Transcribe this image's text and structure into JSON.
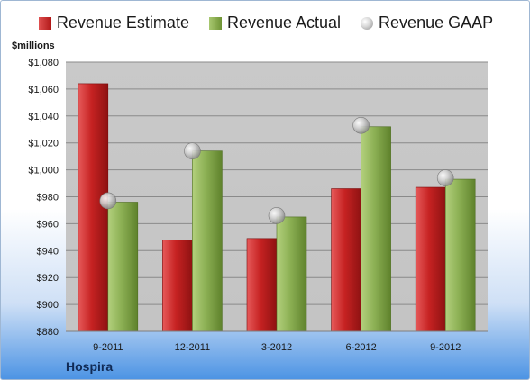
{
  "chart_data": {
    "type": "bar",
    "ylabel": "$millions",
    "company": "Hospira",
    "categories": [
      "9-2011",
      "12-2011",
      "3-2012",
      "6-2012",
      "9-2012"
    ],
    "series": [
      {
        "name": "Revenue Estimate",
        "kind": "bar",
        "color": "#c62222",
        "values": [
          1064,
          948,
          949,
          986,
          987
        ]
      },
      {
        "name": "Revenue Actual",
        "kind": "bar",
        "color": "#8cb054",
        "values": [
          976,
          1014,
          965,
          1032,
          993
        ]
      },
      {
        "name": "Revenue GAAP",
        "kind": "marker",
        "color": "#b8b8b8",
        "values": [
          977,
          1014,
          966,
          1033,
          994
        ]
      }
    ],
    "ylim": [
      880,
      1080
    ],
    "yticks": [
      880,
      900,
      920,
      940,
      960,
      980,
      1000,
      1020,
      1040,
      1060,
      1080
    ],
    "ytick_labels": [
      "$880",
      "$900",
      "$920",
      "$940",
      "$960",
      "$980",
      "$1,000",
      "$1,020",
      "$1,040",
      "$1,060",
      "$1,080"
    ],
    "grid": true,
    "legend_position": "top"
  }
}
